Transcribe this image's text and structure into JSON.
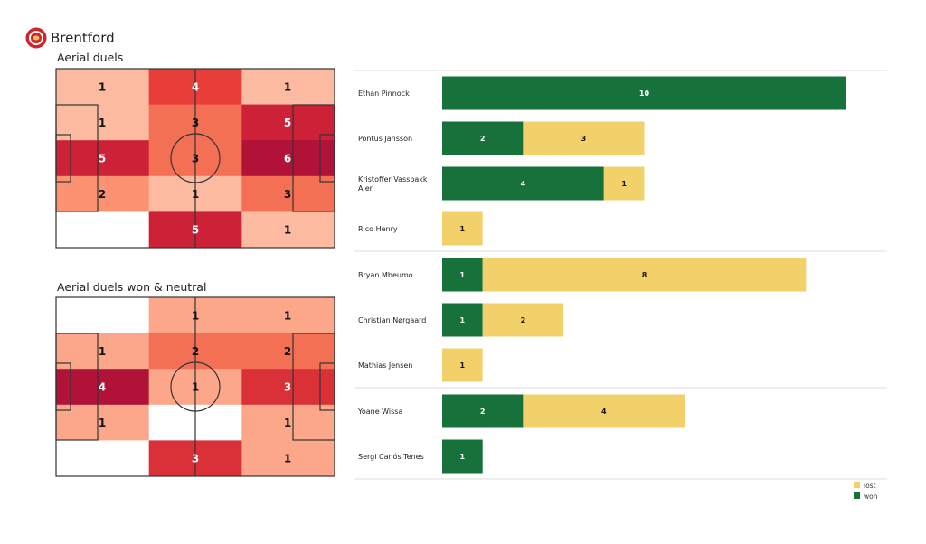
{
  "header": {
    "team": "Brentford",
    "logo_icon": "brentford-crest"
  },
  "chart_data": [
    {
      "type": "heatmap",
      "title": "Aerial duels",
      "grid": [
        [
          1,
          4,
          1
        ],
        [
          1,
          3,
          5
        ],
        [
          5,
          3,
          6
        ],
        [
          2,
          1,
          3
        ],
        [
          0,
          5,
          1
        ]
      ]
    },
    {
      "type": "heatmap",
      "title": "Aerial duels won & neutral",
      "grid": [
        [
          0,
          1,
          1
        ],
        [
          1,
          2,
          2
        ],
        [
          4,
          1,
          3
        ],
        [
          1,
          0,
          1
        ],
        [
          0,
          3,
          1
        ]
      ]
    },
    {
      "type": "bar",
      "orientation": "horizontal",
      "stacked": true,
      "categories": [
        "Ethan Pinnock",
        "Pontus Jansson",
        "Kristoffer Vassbakk Ajer",
        "Rico Henry",
        "Bryan Mbeumo",
        "Christian Nørgaard",
        "Mathias Jensen",
        "Yoane Wissa",
        "Sergi Canós Tenes"
      ],
      "groups": [
        4,
        3,
        2
      ],
      "series": [
        {
          "name": "won",
          "color": "#17713a",
          "values": [
            10,
            2,
            4,
            0,
            1,
            1,
            0,
            2,
            1
          ]
        },
        {
          "name": "lost",
          "color": "#f2d16b",
          "values": [
            0,
            3,
            1,
            1,
            8,
            2,
            1,
            4,
            0
          ]
        }
      ],
      "xlim": [
        0,
        10
      ],
      "legend": "bottom-right",
      "legend_order": [
        "lost",
        "won"
      ]
    }
  ]
}
